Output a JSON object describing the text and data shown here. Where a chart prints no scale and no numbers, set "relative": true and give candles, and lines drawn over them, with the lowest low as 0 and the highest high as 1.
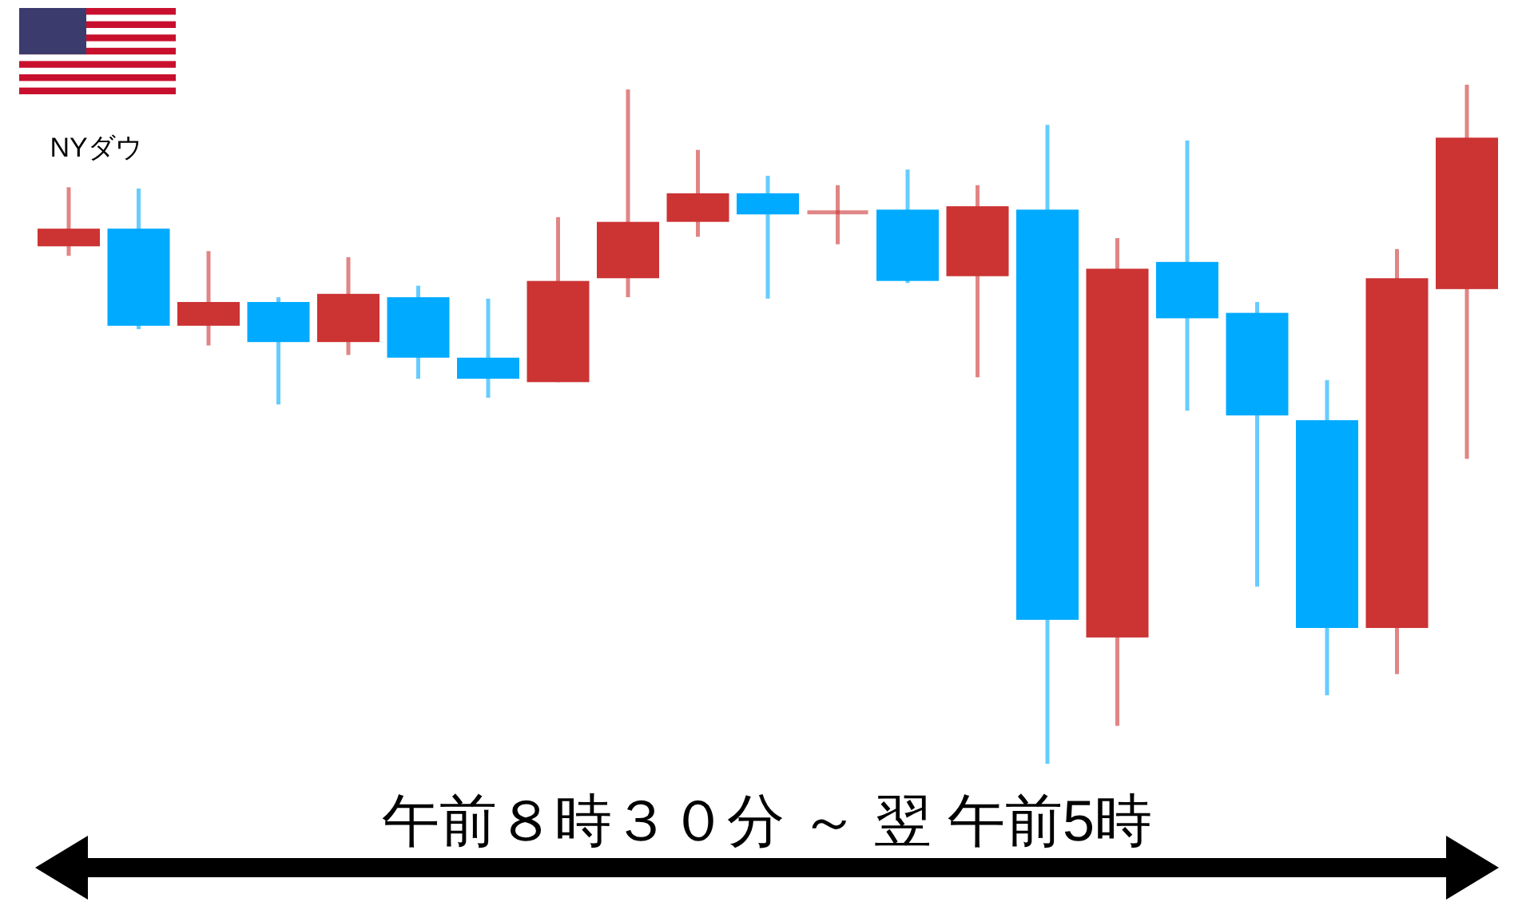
{
  "chart_data": {
    "type": "candlestick",
    "title": "NYダウ",
    "xlabel": "午前８時３０分 ～ 翌 午前5時",
    "relative": true,
    "categories": [
      null,
      null,
      null,
      null,
      null,
      null,
      null,
      null,
      null,
      null,
      null,
      null,
      null,
      null,
      null,
      null,
      null,
      null,
      null,
      null,
      null
    ],
    "ohlc": [
      [
        0.762,
        0.849,
        0.748,
        0.788
      ],
      [
        0.788,
        0.847,
        0.64,
        0.645
      ],
      [
        0.645,
        0.755,
        0.616,
        0.68
      ],
      [
        0.68,
        0.687,
        0.529,
        0.621
      ],
      [
        0.621,
        0.746,
        0.602,
        0.692
      ],
      [
        0.687,
        0.704,
        0.567,
        0.598
      ],
      [
        0.598,
        0.685,
        0.539,
        0.567
      ],
      [
        0.562,
        0.805,
        0.562,
        0.711
      ],
      [
        0.715,
        0.993,
        0.687,
        0.798
      ],
      [
        0.798,
        0.904,
        0.776,
        0.84
      ],
      [
        0.84,
        0.866,
        0.685,
        0.809
      ],
      [
        0.812,
        0.852,
        0.765,
        0.812
      ],
      [
        0.816,
        0.875,
        0.708,
        0.711
      ],
      [
        0.718,
        0.852,
        0.569,
        0.821
      ],
      [
        0.816,
        0.941,
        0.0,
        0.212
      ],
      [
        0.186,
        0.774,
        0.056,
        0.729
      ],
      [
        0.739,
        0.918,
        0.52,
        0.656
      ],
      [
        0.664,
        0.68,
        0.261,
        0.513
      ],
      [
        0.506,
        0.565,
        0.101,
        0.2
      ],
      [
        0.2,
        0.758,
        0.132,
        0.715
      ],
      [
        0.699,
        1.0,
        0.449,
        0.922
      ]
    ],
    "colors": [
      "#cc3333",
      "#00aaff",
      "#cc3333",
      "#00aaff",
      "#cc3333",
      "#00aaff",
      "#00aaff",
      "#cc3333",
      "#cc3333",
      "#cc3333",
      "#00aaff",
      "#cc3333",
      "#00aaff",
      "#cc3333",
      "#00aaff",
      "#cc3333",
      "#00aaff",
      "#00aaff",
      "#00aaff",
      "#cc3333",
      "#cc3333"
    ]
  }
}
